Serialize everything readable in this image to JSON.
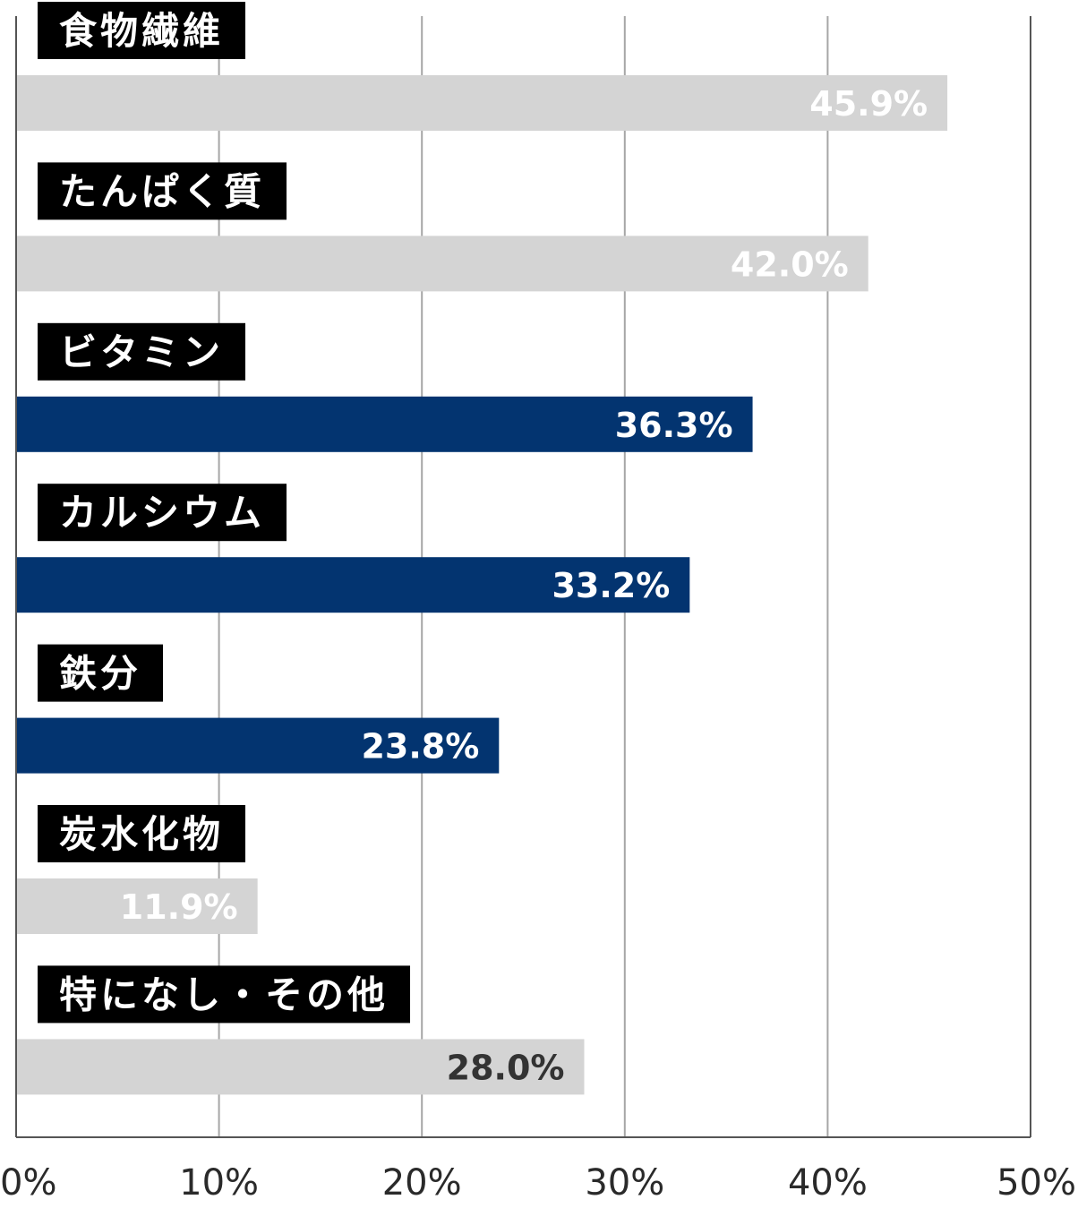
{
  "chart_data": {
    "type": "bar",
    "orientation": "horizontal",
    "xlim": [
      0,
      50
    ],
    "grid": true,
    "ticks": [
      "0%",
      "10%",
      "20%",
      "30%",
      "40%",
      "50%"
    ],
    "categories": [
      "食物繊維",
      "たんぱく質",
      "ビタミン",
      "カルシウム",
      "鉄分",
      "炭水化物",
      "特になし・その他"
    ],
    "values": [
      45.9,
      42.0,
      36.3,
      33.2,
      23.8,
      11.9,
      28.0
    ],
    "value_labels": [
      "45.9%",
      "42.0%",
      "36.3%",
      "33.2%",
      "23.8%",
      "11.9%",
      "28.0%"
    ],
    "highlighted": [
      false,
      false,
      true,
      true,
      true,
      false,
      false
    ]
  },
  "colors": {
    "highlight_bar": "#033470",
    "normal_bar": "#d4d4d4",
    "category_label_bg": "#000000",
    "grid": "#a6a6a6",
    "axis": "#555555",
    "value_text_on_bar": "#ffffff",
    "value_text_dark": "#333333"
  }
}
